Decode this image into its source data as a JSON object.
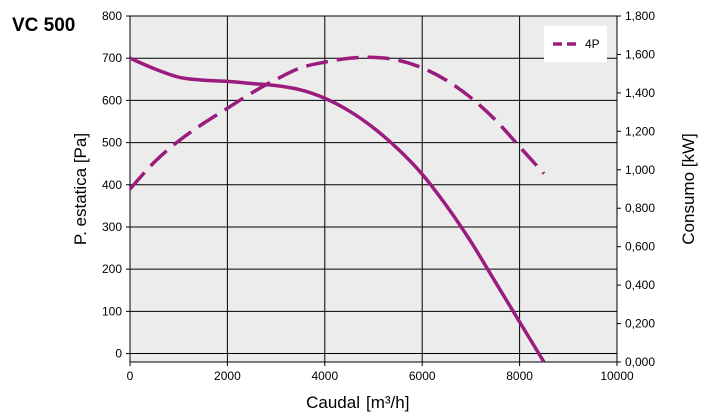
{
  "chart_data": {
    "type": "line",
    "title": "VC 500",
    "xlabel": "Caudal",
    "xlabel_unit": "m³/h",
    "ylabel_left": "P. estatica [Pa]",
    "ylabel_right": "Consumo [kW]",
    "xlim": [
      0,
      10000
    ],
    "ylim_left": [
      -20,
      800
    ],
    "ylim_right": [
      0,
      1800
    ],
    "x_ticks": [
      "0",
      "2000",
      "4000",
      "6000",
      "8000",
      "10000"
    ],
    "y_left_ticks": [
      "0",
      "100",
      "200",
      "300",
      "400",
      "500",
      "600",
      "700",
      "800"
    ],
    "y_right_ticks": [
      "0,000",
      "0,200",
      "0,400",
      "0,600",
      "0,800",
      "1,000",
      "1,200",
      "1,400",
      "1,600",
      "1,800"
    ],
    "grid": true,
    "legend": {
      "position": "top-right",
      "entries": [
        "4P"
      ]
    },
    "colors": {
      "series": "#9b1b7e",
      "plot_bg": "#ececec",
      "grid": "#000000"
    },
    "series": [
      {
        "name": "4P",
        "axis": "left",
        "style": "solid",
        "x": [
          0,
          500,
          1000,
          1500,
          2000,
          2500,
          3000,
          3500,
          4000,
          4500,
          5000,
          5500,
          6000,
          6500,
          7000,
          7500,
          8000,
          8500
        ],
        "y": [
          700,
          675,
          655,
          648,
          645,
          640,
          635,
          625,
          605,
          575,
          535,
          485,
          425,
          350,
          265,
          170,
          75,
          -20
        ]
      },
      {
        "name": "4P",
        "axis": "right",
        "style": "dashed",
        "x": [
          0,
          500,
          1000,
          1500,
          2000,
          2500,
          3000,
          3500,
          4000,
          4500,
          5000,
          5500,
          6000,
          6500,
          7000,
          7500,
          8000,
          8500
        ],
        "y": [
          0.9,
          1.04,
          1.15,
          1.24,
          1.32,
          1.4,
          1.47,
          1.53,
          1.56,
          1.58,
          1.585,
          1.57,
          1.53,
          1.465,
          1.375,
          1.26,
          1.12,
          0.98
        ]
      }
    ]
  }
}
